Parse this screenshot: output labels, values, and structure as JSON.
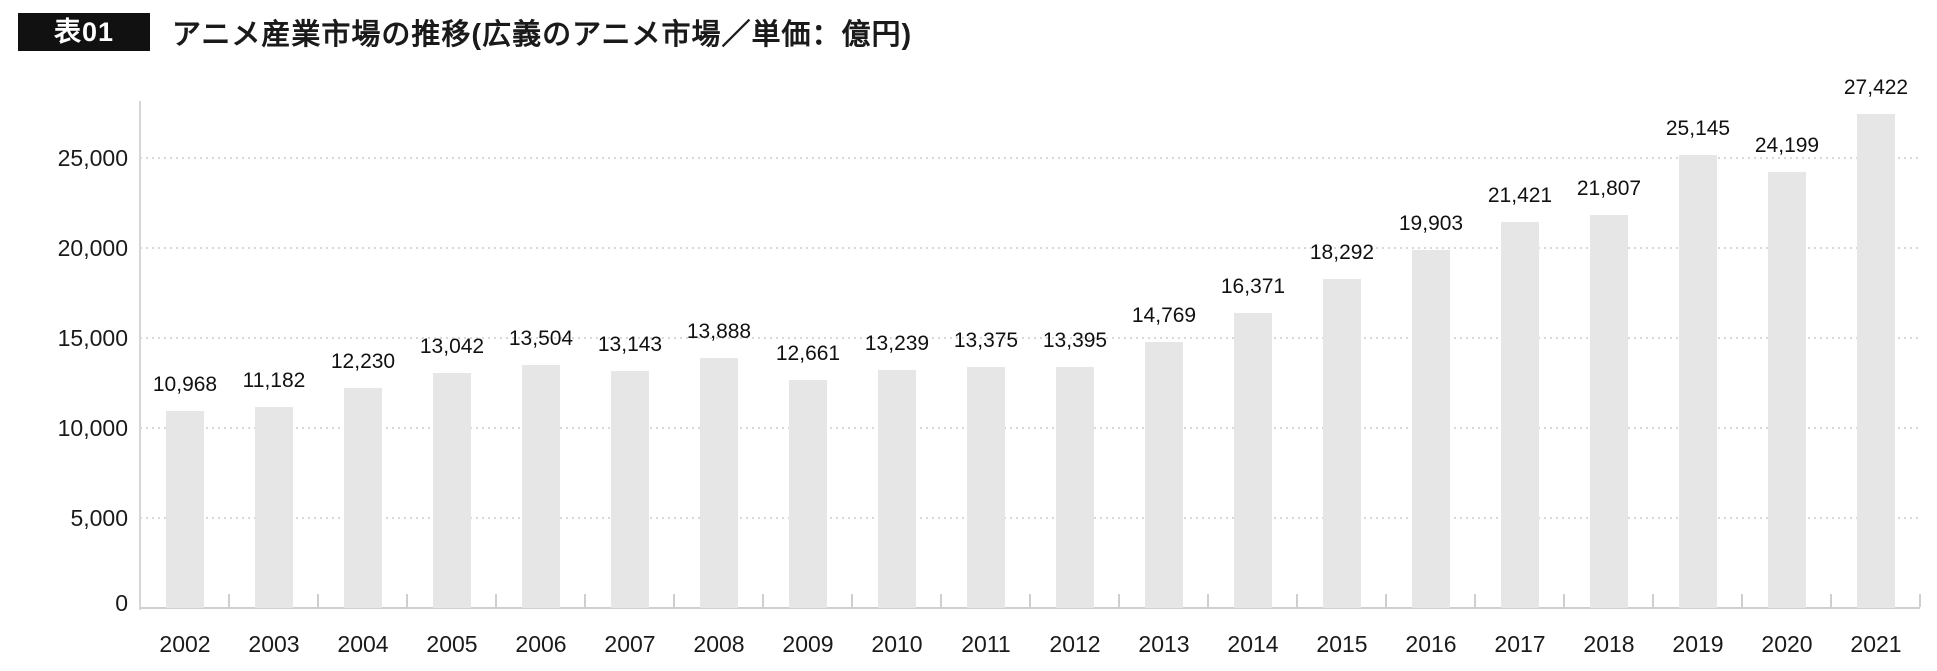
{
  "header": {
    "badge": "表01",
    "title": "アニメ産業市場の推移(広義のアニメ市場／単価：億円)"
  },
  "chart_data": {
    "type": "bar",
    "title": "アニメ産業市場の推移(広義のアニメ市場／単価：億円)",
    "unit": "億円",
    "categories": [
      "2002",
      "2003",
      "2004",
      "2005",
      "2006",
      "2007",
      "2008",
      "2009",
      "2010",
      "2011",
      "2012",
      "2013",
      "2014",
      "2015",
      "2016",
      "2017",
      "2018",
      "2019",
      "2020",
      "2021"
    ],
    "values": [
      10968,
      11182,
      12230,
      13042,
      13504,
      13143,
      13888,
      12661,
      13239,
      13375,
      13395,
      14769,
      16371,
      18292,
      19903,
      21421,
      21807,
      25145,
      24199,
      27422
    ],
    "value_labels": [
      "10,968",
      "11,182",
      "12,230",
      "13,042",
      "13,504",
      "13,143",
      "13,888",
      "12,661",
      "13,239",
      "13,375",
      "13,395",
      "14,769",
      "16,371",
      "18,292",
      "19,903",
      "21,421",
      "21,807",
      "25,145",
      "24,199",
      "27,422"
    ],
    "ytick_values": [
      0,
      5000,
      10000,
      15000,
      20000,
      25000
    ],
    "ytick_labels": [
      "0",
      "5,000",
      "10,000",
      "15,000",
      "20,000",
      "25,000"
    ],
    "ylim": [
      0,
      28100
    ],
    "xlabel": "",
    "ylabel": "",
    "grid": "horizontal-dotted",
    "legend": "none",
    "bar_color": "#e6e6e7",
    "axis_color": "#d6d6d6",
    "baseline_color": "#cfcfcf",
    "grid_color": "#d8d8d8",
    "text_color": "#1a1a1a",
    "badge_bg_color": "#111111",
    "badge_text_color": "#ffffff"
  }
}
